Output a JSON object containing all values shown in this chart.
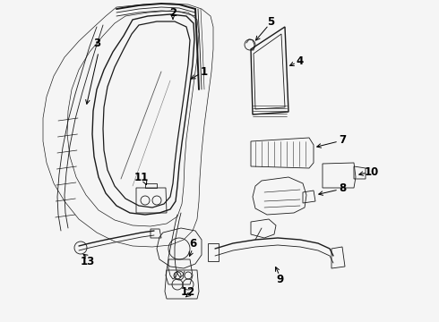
{
  "bg_color": "#f5f5f5",
  "line_color": "#1a1a1a",
  "lw_main": 1.0,
  "lw_thin": 0.6,
  "lw_thick": 1.4,
  "fig_w": 4.9,
  "fig_h": 3.6,
  "dpi": 100,
  "labels": {
    "1": [
      220,
      95,
      195,
      110
    ],
    "2": [
      193,
      18,
      193,
      30
    ],
    "3": [
      110,
      52,
      130,
      80
    ],
    "4": [
      330,
      75,
      318,
      92
    ],
    "5": [
      302,
      28,
      296,
      52
    ],
    "6": [
      215,
      272,
      215,
      258
    ],
    "7": [
      380,
      165,
      360,
      170
    ],
    "8": [
      378,
      213,
      358,
      208
    ],
    "9": [
      310,
      310,
      310,
      298
    ],
    "10": [
      410,
      193,
      390,
      196
    ],
    "11": [
      158,
      198,
      170,
      208
    ],
    "12": [
      210,
      322,
      210,
      310
    ],
    "13": [
      100,
      288,
      112,
      278
    ]
  }
}
